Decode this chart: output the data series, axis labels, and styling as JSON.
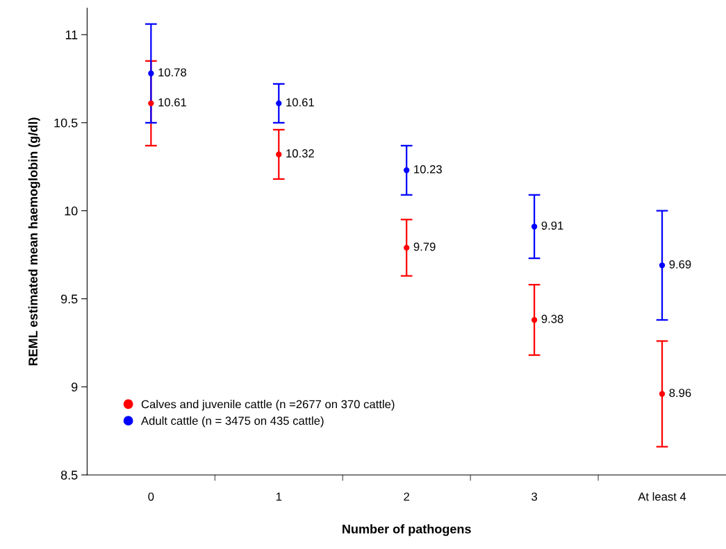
{
  "chart_data": {
    "type": "scatter",
    "xlabel": "Number of pathogens",
    "ylabel": "REML estimated mean haemoglobin (g/dl)",
    "categories": [
      "0",
      "1",
      "2",
      "3",
      "At least 4"
    ],
    "series": [
      {
        "name": "Calves and juvenile cattle (n =2677 on 370 cattle)",
        "color": "#ff0000",
        "values": [
          10.61,
          10.32,
          9.79,
          9.38,
          8.96
        ],
        "errors": [
          0.24,
          0.14,
          0.16,
          0.2,
          0.3
        ]
      },
      {
        "name": "Adult cattle (n = 3475 on 435 cattle)",
        "color": "#0000ff",
        "values": [
          10.78,
          10.61,
          10.23,
          9.91,
          9.69
        ],
        "errors": [
          0.28,
          0.11,
          0.14,
          0.18,
          0.31
        ]
      }
    ],
    "ylim": [
      8.5,
      11.15
    ],
    "yticks": [
      8.5,
      9,
      9.5,
      10,
      10.5,
      11
    ],
    "data_labels": true,
    "legend": "bottom left",
    "grid": false,
    "marker": "circle"
  }
}
